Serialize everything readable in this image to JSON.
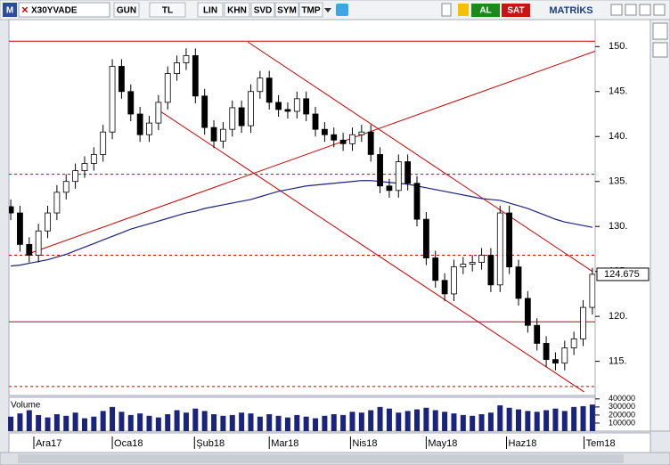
{
  "toolbar": {
    "logo": "M",
    "symbol": "X30YVADE",
    "buttons": [
      "GUN",
      "TL",
      "LIN",
      "KHN",
      "SVD",
      "SYM",
      "TMP"
    ],
    "buy": "AL",
    "sell": "SAT",
    "brand": "MATRİKS"
  },
  "chart_data": [
    {
      "type": "candlestick",
      "open": [
        132.2,
        131.5,
        128,
        126.8,
        129.5,
        131.5,
        133.8,
        135,
        136.2,
        137,
        138,
        140.5,
        147.8,
        145,
        142.5,
        140.2,
        141.5,
        143.8,
        147,
        148.2,
        149,
        144.5,
        141,
        139.5,
        140.8,
        143.2,
        141.2,
        145,
        146.5,
        143.8,
        143,
        142.8,
        144.2,
        142.5,
        140.8,
        140.2,
        139.6,
        139.2,
        140.2,
        140.5,
        138,
        134.5,
        134,
        137.2,
        134.8,
        130.8,
        126.5,
        124,
        122.5,
        125.5,
        125.8,
        126,
        126.8,
        123.5,
        131.5,
        125.5,
        122,
        119,
        117,
        115.2,
        114.8,
        116.5,
        117.5,
        121
      ],
      "high": [
        133,
        132.3,
        128.8,
        130.3,
        132.3,
        134.6,
        135.8,
        137,
        137.8,
        138.8,
        141.3,
        148.6,
        148.6,
        145.8,
        143.3,
        142.3,
        144.6,
        147.8,
        149,
        149.8,
        149.8,
        145.3,
        141.8,
        141.6,
        144,
        144,
        145.8,
        147.3,
        147.3,
        144.6,
        143.8,
        145,
        145,
        143.3,
        141.6,
        141,
        140.4,
        141,
        141.3,
        141.3,
        138.8,
        135.3,
        138,
        138,
        135.6,
        131.6,
        127.3,
        124.8,
        126.3,
        126.6,
        126.8,
        127.6,
        127.6,
        132.3,
        132.3,
        126.3,
        122.8,
        119.8,
        117.8,
        116,
        117.3,
        118.3,
        121.8,
        125.4
      ],
      "low": [
        130.7,
        127.2,
        126,
        126,
        128.7,
        130.7,
        133,
        134.2,
        135.4,
        136.2,
        137.2,
        139.7,
        144.2,
        141.7,
        139.4,
        139.4,
        140.7,
        143,
        146.2,
        147.4,
        143.7,
        140.2,
        138.7,
        138.7,
        140,
        140.4,
        140.4,
        144.2,
        143,
        142.2,
        142,
        142,
        141.7,
        140,
        139.4,
        138.8,
        138.4,
        138.4,
        139.4,
        137.2,
        133.7,
        133.2,
        133.2,
        134,
        130,
        125.7,
        123.2,
        121.7,
        121.7,
        124.7,
        125,
        125.2,
        122.7,
        122.7,
        124.7,
        121.2,
        118.2,
        116.2,
        114.4,
        114,
        114,
        115.7,
        116.7,
        120.2
      ],
      "close": [
        131.5,
        128,
        126.8,
        129.5,
        131.5,
        133.8,
        135,
        136.2,
        137,
        138,
        140.5,
        147.8,
        145,
        142.5,
        140.2,
        141.5,
        143.8,
        147,
        148.2,
        149,
        144.5,
        141,
        139.5,
        140.8,
        143.2,
        141.2,
        145,
        146.5,
        143.8,
        143,
        142.8,
        144.2,
        142.5,
        140.8,
        140.2,
        139.6,
        139.2,
        140.2,
        140.5,
        138,
        134.5,
        134,
        137.2,
        134.8,
        130.8,
        126.5,
        124,
        122.5,
        125.5,
        125.8,
        126,
        126.8,
        123.5,
        131.5,
        125.5,
        122,
        119,
        117,
        115.2,
        114.8,
        116.5,
        117.5,
        121,
        124.675
      ],
      "up_color": "#ffffff",
      "down_color": "#000000",
      "moving_average": {
        "color": "#1a237e",
        "values": [
          125.6,
          125.7,
          125.9,
          126.1,
          126.3,
          126.6,
          126.9,
          127.3,
          127.7,
          128.1,
          128.5,
          128.9,
          129.3,
          129.7,
          130.0,
          130.3,
          130.6,
          130.9,
          131.2,
          131.5,
          131.7,
          132.0,
          132.2,
          132.4,
          132.6,
          132.8,
          133.0,
          133.3,
          133.6,
          133.9,
          134.1,
          134.3,
          134.5,
          134.6,
          134.7,
          134.8,
          134.9,
          135.0,
          135.1,
          135.1,
          135.0,
          134.9,
          134.8,
          134.7,
          134.5,
          134.3,
          134.1,
          133.9,
          133.7,
          133.5,
          133.3,
          133.1,
          133.0,
          132.9,
          132.6,
          132.3,
          132.0,
          131.6,
          131.2,
          130.8,
          130.5,
          130.3,
          130.1,
          129.9
        ]
      },
      "hlines": [
        {
          "value": 150.6,
          "style": "solid"
        },
        {
          "value": 135.8,
          "style": "dashed"
        },
        {
          "value": 126.8,
          "style": "dashed"
        },
        {
          "value": 119.4,
          "style": "solid"
        },
        {
          "value": 112.2,
          "style": "dashed"
        }
      ],
      "trendlines": [
        {
          "x": [
            1.5,
            63.6
          ],
          "y": [
            126.8,
            149.6
          ]
        },
        {
          "x": [
            25.7,
            63
          ],
          "y": [
            150.5,
            125
          ]
        },
        {
          "x": [
            16.2,
            62.1
          ],
          "y": [
            142.8,
            111.6
          ]
        }
      ],
      "line_color": "#cc0000",
      "xlim": [
        -0.2,
        63.3
      ],
      "xticks": [
        {
          "value": 2.5,
          "label": "Ara17"
        },
        {
          "value": 11,
          "label": "Oca18"
        },
        {
          "value": 19.9,
          "label": "Şub18"
        },
        {
          "value": 28,
          "label": "Mar18"
        },
        {
          "value": 36.8,
          "label": "Nis18"
        },
        {
          "value": 45,
          "label": "May18"
        },
        {
          "value": 53.7,
          "label": "Haz18"
        },
        {
          "value": 62.1,
          "label": "Tem18"
        }
      ],
      "ylim": [
        111.2,
        153
      ],
      "yticks": [
        {
          "value": 115,
          "label": "115."
        },
        {
          "value": 120,
          "label": "120."
        },
        {
          "value": 125,
          "label": "125."
        },
        {
          "value": 130,
          "label": "130."
        },
        {
          "value": 135,
          "label": "135."
        },
        {
          "value": 140,
          "label": "140."
        },
        {
          "value": 145,
          "label": "145."
        },
        {
          "value": 150,
          "label": "150."
        }
      ]
    },
    {
      "type": "bar",
      "title": "Volume",
      "color": "#1a237e",
      "values": [
        180000,
        220000,
        260000,
        200000,
        170000,
        210000,
        190000,
        230000,
        160000,
        180000,
        250000,
        300000,
        240000,
        200000,
        220000,
        190000,
        170000,
        210000,
        260000,
        230000,
        280000,
        250000,
        210000,
        190000,
        200000,
        230000,
        220000,
        180000,
        210000,
        190000,
        170000,
        200000,
        180000,
        160000,
        190000,
        210000,
        200000,
        240000,
        230000,
        260000,
        300000,
        280000,
        230000,
        250000,
        270000,
        290000,
        260000,
        240000,
        220000,
        200000,
        190000,
        210000,
        230000,
        320000,
        290000,
        270000,
        250000,
        240000,
        260000,
        280000,
        250000,
        300000,
        310000,
        330000
      ],
      "xlim": [
        -0.2,
        63.3
      ],
      "ylim": [
        0,
        420000
      ],
      "yticks": [
        100000,
        200000,
        300000,
        400000
      ]
    }
  ]
}
